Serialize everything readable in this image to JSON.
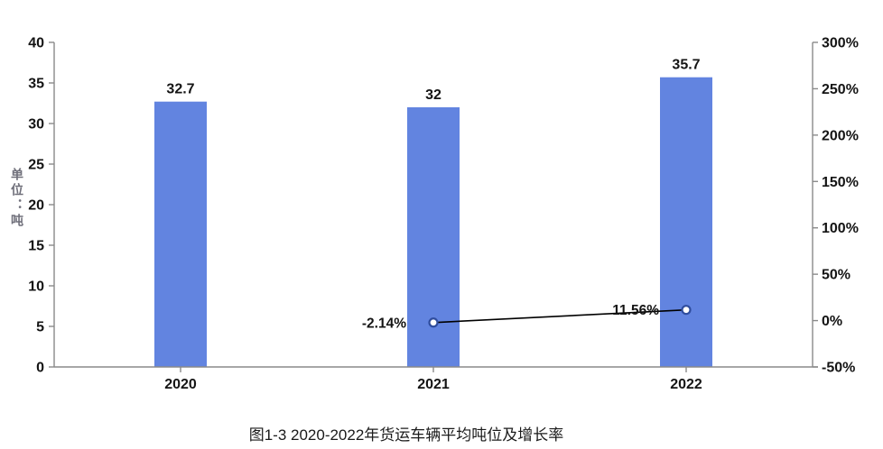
{
  "figure": {
    "caption": "图1-3 2020-2022年货运车辆平均吨位及增长率"
  },
  "chart_data": {
    "type": "bar",
    "subtype": "bar-line-combo",
    "categories": [
      "2020",
      "2021",
      "2022"
    ],
    "series": [
      {
        "name": "平均吨位",
        "type": "bar",
        "axis": "left",
        "values": [
          32.7,
          32,
          35.7
        ],
        "labels": [
          "32.7",
          "32",
          "35.7"
        ],
        "color": "#6284e0"
      },
      {
        "name": "增长率",
        "type": "line",
        "axis": "right",
        "values": [
          null,
          -2.14,
          11.56
        ],
        "labels": [
          null,
          "-2.14%",
          "11.56%"
        ],
        "line_color": "#000000",
        "marker_stroke": "#2f4d9e",
        "marker_fill": "#ffffff"
      }
    ],
    "left_axis": {
      "title": "单位：吨",
      "min": 0,
      "max": 40,
      "step": 5,
      "tick_labels": [
        "0",
        "5",
        "10",
        "15",
        "20",
        "25",
        "30",
        "35",
        "40"
      ]
    },
    "right_axis": {
      "min": -50,
      "max": 300,
      "step": 50,
      "tick_labels": [
        "-50%",
        "0%",
        "50%",
        "100%",
        "150%",
        "200%",
        "250%",
        "300%"
      ]
    },
    "grid": false,
    "legend": "none",
    "axis_line_color": "#8a8a8a",
    "tick_text_color": "#141414"
  }
}
